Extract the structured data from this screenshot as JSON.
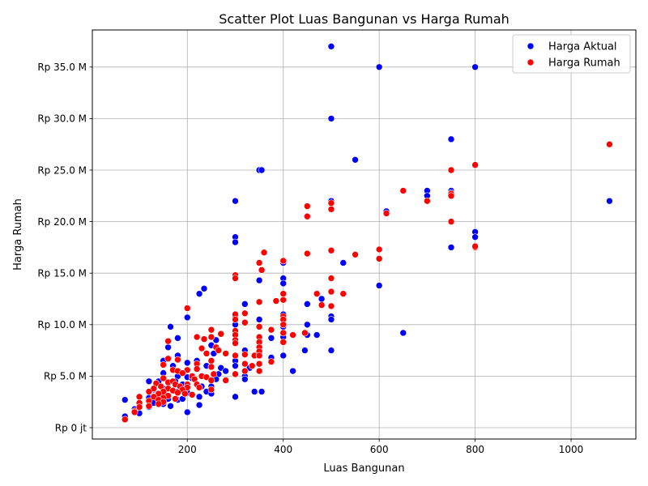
{
  "chart_data": {
    "type": "scatter",
    "title": "Scatter Plot Luas Bangunan vs Harga Rumah",
    "xlabel": "Luas Bangunan",
    "ylabel": "Harga Rumah",
    "xlim": [
      2,
      1135
    ],
    "ylim": [
      -1100000000,
      38600000000
    ],
    "x_ticks": [
      200,
      400,
      600,
      800,
      1000
    ],
    "x_tick_labels": [
      "200",
      "400",
      "600",
      "800",
      "1000"
    ],
    "y_ticks": [
      0,
      5000000000,
      10000000000,
      15000000000,
      20000000000,
      25000000000,
      30000000000,
      35000000000
    ],
    "y_tick_labels": [
      "Rp 0 jt",
      "Rp 5.0 M",
      "Rp 10.0 M",
      "Rp 15.0 M",
      "Rp 20.0 M",
      "Rp 25.0 M",
      "Rp 30.0 M",
      "Rp 35.0 M"
    ],
    "grid": true,
    "legend_position": "top-right",
    "series": [
      {
        "name": "Harga Aktual",
        "color": "#0000ff",
        "points": [
          [
            500,
            37000000000
          ],
          [
            600,
            35000000000
          ],
          [
            800,
            35000000000
          ],
          [
            500,
            30000000000
          ],
          [
            750,
            28000000000
          ],
          [
            550,
            26000000000
          ],
          [
            350,
            25000000000
          ],
          [
            355,
            25000000000
          ],
          [
            750,
            23000000000
          ],
          [
            700,
            23000000000
          ],
          [
            700,
            22500000000
          ],
          [
            750,
            22800000000
          ],
          [
            300,
            22000000000
          ],
          [
            500,
            22000000000
          ],
          [
            1080,
            22000000000
          ],
          [
            615,
            21000000000
          ],
          [
            800,
            19000000000
          ],
          [
            800,
            18500000000
          ],
          [
            300,
            18500000000
          ],
          [
            300,
            18000000000
          ],
          [
            750,
            17500000000
          ],
          [
            525,
            16000000000
          ],
          [
            400,
            16000000000
          ],
          [
            400,
            14500000000
          ],
          [
            400,
            14000000000
          ],
          [
            350,
            14300000000
          ],
          [
            600,
            13800000000
          ],
          [
            235,
            13500000000
          ],
          [
            225,
            13000000000
          ],
          [
            480,
            12500000000
          ],
          [
            450,
            12000000000
          ],
          [
            320,
            12000000000
          ],
          [
            400,
            11000000000
          ],
          [
            300,
            10800000000
          ],
          [
            500,
            10800000000
          ],
          [
            500,
            10500000000
          ],
          [
            350,
            10500000000
          ],
          [
            200,
            10700000000
          ],
          [
            450,
            10000000000
          ],
          [
            300,
            10000000000
          ],
          [
            400,
            9800000000
          ],
          [
            165,
            9800000000
          ],
          [
            650,
            9200000000
          ],
          [
            470,
            9000000000
          ],
          [
            450,
            9000000000
          ],
          [
            400,
            8800000000
          ],
          [
            375,
            8700000000
          ],
          [
            180,
            8700000000
          ],
          [
            260,
            8500000000
          ],
          [
            250,
            8000000000
          ],
          [
            160,
            7800000000
          ],
          [
            500,
            7500000000
          ],
          [
            445,
            7500000000
          ],
          [
            320,
            7500000000
          ],
          [
            255,
            7200000000
          ],
          [
            180,
            7000000000
          ],
          [
            400,
            7000000000
          ],
          [
            375,
            6800000000
          ],
          [
            300,
            6500000000
          ],
          [
            220,
            6500000000
          ],
          [
            150,
            6500000000
          ],
          [
            200,
            6300000000
          ],
          [
            240,
            6000000000
          ],
          [
            170,
            6000000000
          ],
          [
            300,
            6000000000
          ],
          [
            270,
            5800000000
          ],
          [
            330,
            5800000000
          ],
          [
            280,
            5500000000
          ],
          [
            420,
            5500000000
          ],
          [
            150,
            5300000000
          ],
          [
            265,
            5200000000
          ],
          [
            320,
            5000000000
          ],
          [
            180,
            5000000000
          ],
          [
            200,
            4900000000
          ],
          [
            210,
            4800000000
          ],
          [
            320,
            4700000000
          ],
          [
            260,
            4700000000
          ],
          [
            120,
            4500000000
          ],
          [
            140,
            4500000000
          ],
          [
            175,
            4500000000
          ],
          [
            160,
            4300000000
          ],
          [
            190,
            4200000000
          ],
          [
            230,
            4000000000
          ],
          [
            250,
            4000000000
          ],
          [
            200,
            3900000000
          ],
          [
            150,
            3800000000
          ],
          [
            130,
            3700000000
          ],
          [
            180,
            3500000000
          ],
          [
            240,
            3500000000
          ],
          [
            340,
            3500000000
          ],
          [
            355,
            3500000000
          ],
          [
            200,
            3400000000
          ],
          [
            250,
            3300000000
          ],
          [
            225,
            3000000000
          ],
          [
            300,
            3000000000
          ],
          [
            120,
            2900000000
          ],
          [
            160,
            2800000000
          ],
          [
            180,
            2700000000
          ],
          [
            190,
            2800000000
          ],
          [
            70,
            2700000000
          ],
          [
            130,
            2400000000
          ],
          [
            150,
            2300000000
          ],
          [
            165,
            2100000000
          ],
          [
            225,
            2200000000
          ],
          [
            100,
            2000000000
          ],
          [
            120,
            2000000000
          ],
          [
            90,
            1800000000
          ],
          [
            100,
            1400000000
          ],
          [
            200,
            1500000000
          ],
          [
            70,
            1100000000
          ]
        ]
      },
      {
        "name": "Harga Rumah",
        "color": "#ff0000",
        "points": [
          [
            1080,
            27500000000
          ],
          [
            800,
            25500000000
          ],
          [
            750,
            25000000000
          ],
          [
            650,
            23000000000
          ],
          [
            750,
            22700000000
          ],
          [
            750,
            22500000000
          ],
          [
            700,
            22000000000
          ],
          [
            450,
            21500000000
          ],
          [
            500,
            21800000000
          ],
          [
            500,
            21200000000
          ],
          [
            615,
            20800000000
          ],
          [
            450,
            20500000000
          ],
          [
            750,
            20000000000
          ],
          [
            800,
            17500000000
          ],
          [
            800,
            17600000000
          ],
          [
            600,
            17300000000
          ],
          [
            500,
            17200000000
          ],
          [
            360,
            17000000000
          ],
          [
            450,
            16900000000
          ],
          [
            550,
            16800000000
          ],
          [
            600,
            16400000000
          ],
          [
            400,
            16200000000
          ],
          [
            350,
            16000000000
          ],
          [
            355,
            15300000000
          ],
          [
            300,
            14800000000
          ],
          [
            300,
            14500000000
          ],
          [
            500,
            14500000000
          ],
          [
            500,
            13200000000
          ],
          [
            525,
            13000000000
          ],
          [
            470,
            13000000000
          ],
          [
            400,
            13000000000
          ],
          [
            385,
            12300000000
          ],
          [
            350,
            12200000000
          ],
          [
            400,
            12400000000
          ],
          [
            500,
            11800000000
          ],
          [
            480,
            11900000000
          ],
          [
            200,
            11600000000
          ],
          [
            320,
            11100000000
          ],
          [
            300,
            11000000000
          ],
          [
            400,
            10800000000
          ],
          [
            300,
            10500000000
          ],
          [
            400,
            10500000000
          ],
          [
            320,
            10200000000
          ],
          [
            400,
            10000000000
          ],
          [
            350,
            9800000000
          ],
          [
            250,
            9500000000
          ],
          [
            375,
            9500000000
          ],
          [
            300,
            9400000000
          ],
          [
            400,
            9200000000
          ],
          [
            445,
            9200000000
          ],
          [
            270,
            9100000000
          ],
          [
            420,
            9000000000
          ],
          [
            300,
            9000000000
          ],
          [
            350,
            8800000000
          ],
          [
            220,
            8800000000
          ],
          [
            250,
            8800000000
          ],
          [
            235,
            8600000000
          ],
          [
            160,
            8400000000
          ],
          [
            300,
            8500000000
          ],
          [
            350,
            8300000000
          ],
          [
            400,
            8300000000
          ],
          [
            300,
            8200000000
          ],
          [
            260,
            7800000000
          ],
          [
            350,
            7800000000
          ],
          [
            230,
            7700000000
          ],
          [
            265,
            7500000000
          ],
          [
            350,
            7400000000
          ],
          [
            280,
            7200000000
          ],
          [
            240,
            7200000000
          ],
          [
            320,
            7100000000
          ],
          [
            340,
            7000000000
          ],
          [
            300,
            7000000000
          ],
          [
            350,
            7000000000
          ],
          [
            160,
            6700000000
          ],
          [
            180,
            6600000000
          ],
          [
            250,
            6500000000
          ],
          [
            375,
            6400000000
          ],
          [
            220,
            6200000000
          ],
          [
            150,
            6100000000
          ],
          [
            320,
            6200000000
          ],
          [
            350,
            6200000000
          ],
          [
            335,
            6000000000
          ],
          [
            250,
            5900000000
          ],
          [
            220,
            5700000000
          ],
          [
            170,
            5600000000
          ],
          [
            200,
            5600000000
          ],
          [
            180,
            5500000000
          ],
          [
            320,
            5500000000
          ],
          [
            350,
            5500000000
          ],
          [
            190,
            5300000000
          ],
          [
            255,
            5200000000
          ],
          [
            300,
            5200000000
          ],
          [
            210,
            5000000000
          ],
          [
            230,
            5000000000
          ],
          [
            240,
            4900000000
          ],
          [
            150,
            4800000000
          ],
          [
            215,
            4700000000
          ],
          [
            280,
            4600000000
          ],
          [
            250,
            4600000000
          ],
          [
            160,
            4400000000
          ],
          [
            170,
            4500000000
          ],
          [
            135,
            4300000000
          ],
          [
            200,
            4200000000
          ],
          [
            175,
            4200000000
          ],
          [
            220,
            4200000000
          ],
          [
            145,
            4000000000
          ],
          [
            185,
            4000000000
          ],
          [
            200,
            3900000000
          ],
          [
            225,
            3900000000
          ],
          [
            160,
            3800000000
          ],
          [
            130,
            3800000000
          ],
          [
            190,
            3700000000
          ],
          [
            250,
            3700000000
          ],
          [
            170,
            3600000000
          ],
          [
            150,
            3500000000
          ],
          [
            120,
            3500000000
          ],
          [
            180,
            3400000000
          ],
          [
            140,
            3300000000
          ],
          [
            195,
            3300000000
          ],
          [
            210,
            3200000000
          ],
          [
            160,
            3100000000
          ],
          [
            130,
            3000000000
          ],
          [
            100,
            3000000000
          ],
          [
            150,
            2900000000
          ],
          [
            175,
            2800000000
          ],
          [
            140,
            2700000000
          ],
          [
            120,
            2600000000
          ],
          [
            150,
            2500000000
          ],
          [
            100,
            2400000000
          ],
          [
            140,
            2300000000
          ],
          [
            120,
            2100000000
          ],
          [
            100,
            2000000000
          ],
          [
            90,
            1600000000
          ],
          [
            90,
            1500000000
          ],
          [
            70,
            800000000
          ]
        ]
      }
    ]
  }
}
